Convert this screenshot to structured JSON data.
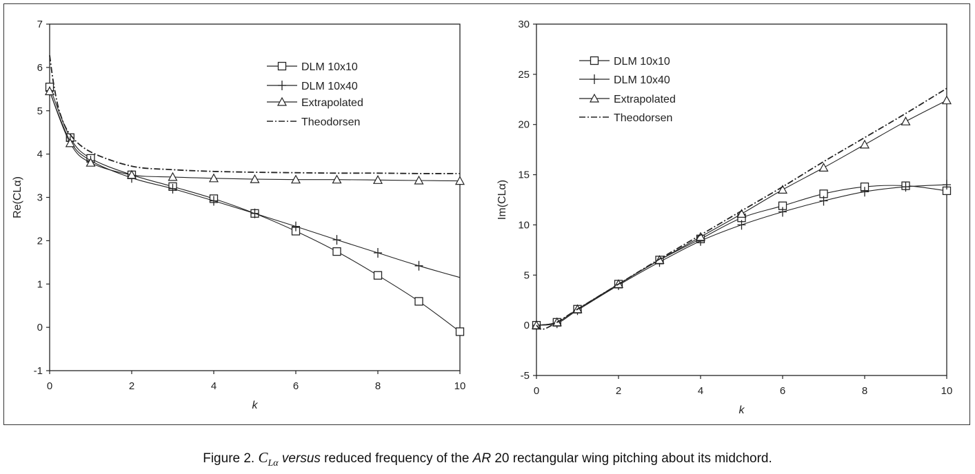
{
  "caption": {
    "prefix": "Figure 2. ",
    "symbol_main": "C",
    "symbol_sub": "Lα",
    "versus": " versus",
    "middle": " reduced frequency of the ",
    "ar": "AR",
    "suffix": " 20 rectangular wing pitching about its midchord."
  },
  "chart_data": [
    {
      "type": "line",
      "title": "",
      "xlabel": "k",
      "ylabel": "Re(CLα)",
      "xlim": [
        0,
        10
      ],
      "ylim": [
        -1,
        7
      ],
      "xticks": [
        0,
        2,
        4,
        6,
        8,
        10
      ],
      "yticks": [
        -1,
        0,
        1,
        2,
        3,
        4,
        5,
        6,
        7
      ],
      "grid": false,
      "legend_position": "top-right",
      "series": [
        {
          "name": "DLM 10x10",
          "marker": "square",
          "dash": "solid",
          "x": [
            0,
            0.5,
            1,
            2,
            3,
            4,
            5,
            6,
            7,
            8,
            9,
            10
          ],
          "y": [
            5.55,
            4.38,
            3.9,
            3.52,
            3.25,
            2.97,
            2.63,
            2.22,
            1.75,
            1.2,
            0.6,
            -0.1
          ]
        },
        {
          "name": "DLM 10x40",
          "marker": "plus",
          "dash": "solid",
          "x": [
            0,
            0.5,
            1,
            2,
            3,
            4,
            5,
            6,
            7,
            8,
            9,
            10
          ],
          "y": [
            5.45,
            4.3,
            3.85,
            3.45,
            3.2,
            2.92,
            2.63,
            2.33,
            2.02,
            1.72,
            1.42,
            1.15
          ]
        },
        {
          "name": "Extrapolated",
          "marker": "triangle",
          "dash": "solid",
          "x": [
            0,
            0.5,
            1,
            2,
            3,
            4,
            5,
            6,
            7,
            8,
            9,
            10
          ],
          "y": [
            5.45,
            4.25,
            3.8,
            3.52,
            3.47,
            3.44,
            3.42,
            3.41,
            3.41,
            3.4,
            3.39,
            3.38
          ]
        },
        {
          "name": "Theodorsen",
          "marker": "none",
          "dash": "dashdot",
          "x": [
            0,
            0.1,
            0.25,
            0.5,
            1,
            2,
            3,
            4,
            5,
            6,
            7,
            8,
            9,
            10
          ],
          "y": [
            6.28,
            5.6,
            4.95,
            4.45,
            4.05,
            3.72,
            3.64,
            3.6,
            3.58,
            3.57,
            3.56,
            3.56,
            3.55,
            3.55
          ]
        }
      ]
    },
    {
      "type": "line",
      "title": "",
      "xlabel": "k",
      "ylabel": "Im(CLα)",
      "xlim": [
        0,
        10
      ],
      "ylim": [
        -5,
        30
      ],
      "xticks": [
        0,
        2,
        4,
        6,
        8,
        10
      ],
      "yticks": [
        -5,
        0,
        5,
        10,
        15,
        20,
        25,
        30
      ],
      "grid": false,
      "legend_position": "top-left",
      "series": [
        {
          "name": "DLM 10x10",
          "marker": "square",
          "dash": "solid",
          "x": [
            0,
            0.5,
            1,
            2,
            3,
            4,
            5,
            6,
            7,
            8,
            9,
            10
          ],
          "y": [
            0,
            0.3,
            1.6,
            4.1,
            6.5,
            8.6,
            10.7,
            11.9,
            13.1,
            13.8,
            13.9,
            13.4
          ]
        },
        {
          "name": "DLM 10x40",
          "marker": "plus",
          "dash": "solid",
          "x": [
            0,
            0.5,
            1,
            2,
            3,
            4,
            5,
            6,
            7,
            8,
            9,
            10
          ],
          "y": [
            0,
            0.2,
            1.5,
            4.0,
            6.3,
            8.4,
            10.0,
            11.3,
            12.4,
            13.3,
            13.8,
            14.0
          ]
        },
        {
          "name": "Extrapolated",
          "marker": "triangle",
          "dash": "solid",
          "x": [
            0,
            0.5,
            1,
            2,
            3,
            4,
            5,
            6,
            7,
            8,
            9,
            10
          ],
          "y": [
            0,
            0.3,
            1.6,
            4.1,
            6.5,
            8.8,
            11.1,
            13.5,
            15.7,
            18.0,
            20.3,
            22.4
          ]
        },
        {
          "name": "Theodorsen",
          "marker": "none",
          "dash": "dashdot",
          "x": [
            0,
            0.15,
            0.5,
            1,
            2,
            3,
            4,
            5,
            6,
            7,
            8,
            9,
            10
          ],
          "y": [
            0,
            -0.4,
            0.3,
            1.6,
            4.1,
            6.6,
            9.0,
            11.4,
            13.8,
            16.3,
            18.7,
            21.1,
            23.6
          ]
        }
      ]
    }
  ]
}
